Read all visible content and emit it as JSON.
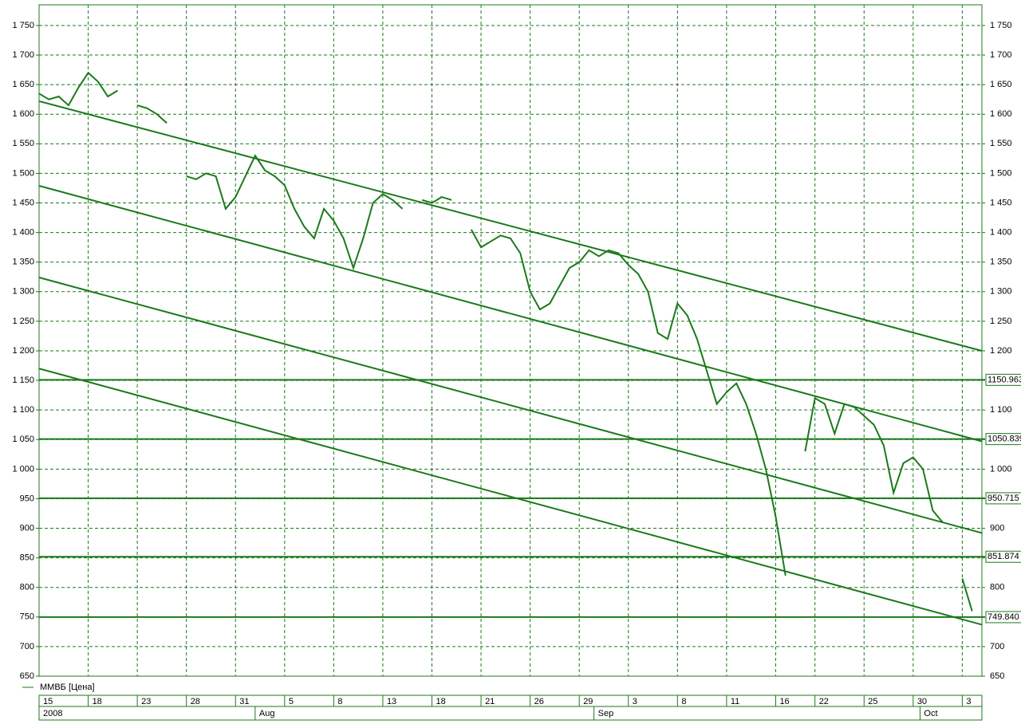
{
  "chart_data": {
    "type": "line",
    "legend": "ММВБ [Цена]",
    "color": "#1b7a1b",
    "xlim": [
      0,
      96
    ],
    "ylim": [
      650,
      1785
    ],
    "yticks": [
      650,
      700,
      750,
      800,
      850,
      900,
      950,
      {
        "value": 1000,
        "label": "1 000"
      },
      {
        "value": 1050,
        "label": "1 050"
      },
      {
        "value": 1100,
        "label": "1 100"
      },
      {
        "value": 1150,
        "label": "1 150"
      },
      {
        "value": 1200,
        "label": "1 200"
      },
      {
        "value": 1250,
        "label": "1 250"
      },
      {
        "value": 1300,
        "label": "1 300"
      },
      {
        "value": 1350,
        "label": "1 350"
      },
      {
        "value": 1400,
        "label": "1 400"
      },
      {
        "value": 1450,
        "label": "1 450"
      },
      {
        "value": 1500,
        "label": "1 500"
      },
      {
        "value": 1550,
        "label": "1 550"
      },
      {
        "value": 1600,
        "label": "1 600"
      },
      {
        "value": 1650,
        "label": "1 650"
      },
      {
        "value": 1700,
        "label": "1 700"
      },
      {
        "value": 1750,
        "label": "1 750"
      }
    ],
    "xticks": [
      {
        "value": 0,
        "label": "15"
      },
      {
        "value": 5,
        "label": "18"
      },
      {
        "value": 10,
        "label": "23"
      },
      {
        "value": 15,
        "label": "28"
      },
      {
        "value": 20,
        "label": "31"
      },
      {
        "value": 25,
        "label": "5"
      },
      {
        "value": 30,
        "label": "8"
      },
      {
        "value": 35,
        "label": "13"
      },
      {
        "value": 40,
        "label": "18"
      },
      {
        "value": 45,
        "label": "21"
      },
      {
        "value": 50,
        "label": "26"
      },
      {
        "value": 55,
        "label": "29"
      },
      {
        "value": 60,
        "label": "3"
      },
      {
        "value": 65,
        "label": "8"
      },
      {
        "value": 70,
        "label": "11"
      },
      {
        "value": 75,
        "label": "16"
      },
      {
        "value": 79,
        "label": "22"
      },
      {
        "value": 84,
        "label": "25"
      },
      {
        "value": 89,
        "label": "30"
      },
      {
        "value": 94,
        "label": "3"
      }
    ],
    "months": [
      {
        "value": 0,
        "label": "2008"
      },
      {
        "value": 22,
        "label": "Aug"
      },
      {
        "value": 56.5,
        "label": "Sep"
      },
      {
        "value": 89.7,
        "label": "Oct"
      }
    ],
    "grid": true,
    "levels": [
      {
        "value": 1150.963,
        "label": "1150.963"
      },
      {
        "value": 1050.839,
        "label": "1050.839"
      },
      {
        "value": 950.715,
        "label": "950.715"
      },
      {
        "value": 851.874,
        "label": "851.874"
      },
      {
        "value": 749.84,
        "label": "749.840"
      }
    ],
    "trendlines": [
      [
        0,
        1622,
        96,
        1200
      ],
      [
        0,
        1479,
        96,
        1047
      ],
      [
        0,
        1324,
        96,
        892
      ],
      [
        0,
        1170,
        96,
        737
      ]
    ],
    "x": [
      0,
      1,
      2,
      3,
      4,
      5,
      6,
      7,
      8,
      9,
      10,
      11,
      12,
      13,
      14,
      15,
      16,
      17,
      18,
      19,
      20,
      21,
      22,
      23,
      24,
      25,
      26,
      27,
      28,
      29,
      30,
      31,
      32,
      33,
      34,
      35,
      36,
      37,
      38,
      39,
      40,
      41,
      42,
      43,
      44,
      45,
      46,
      47,
      48,
      49,
      50,
      51,
      52,
      53,
      54,
      55,
      56,
      57,
      58,
      59,
      60,
      61,
      62,
      63,
      64,
      65,
      66,
      67,
      68,
      69,
      70,
      71,
      72,
      73,
      74,
      75,
      76,
      77,
      78,
      79,
      80,
      81,
      82,
      83,
      84,
      85,
      86,
      87,
      88,
      89,
      90,
      91,
      92,
      93,
      94,
      95
    ],
    "values": [
      1635,
      1625,
      1630,
      1615,
      1645,
      1670,
      1655,
      1630,
      1640,
      null,
      1615,
      1610,
      1600,
      1585,
      null,
      1495,
      1490,
      1500,
      1495,
      1440,
      1460,
      1495,
      1530,
      1505,
      1495,
      1480,
      1440,
      1410,
      1390,
      1440,
      1420,
      1390,
      1340,
      1390,
      1450,
      1465,
      1455,
      1440,
      null,
      1455,
      1450,
      1460,
      1455,
      null,
      1405,
      1375,
      1385,
      1395,
      1390,
      1365,
      1300,
      1270,
      1280,
      1310,
      1340,
      1350,
      1370,
      1360,
      1370,
      1365,
      1345,
      1330,
      1300,
      1230,
      1220,
      1280,
      1260,
      1220,
      1165,
      1110,
      1130,
      1145,
      1110,
      1060,
      1000,
      920,
      820,
      null,
      1030,
      1120,
      1110,
      1060,
      1110,
      1105,
      1090,
      1075,
      1040,
      960,
      1010,
      1020,
      1000,
      930,
      910,
      null,
      815,
      760
    ]
  }
}
